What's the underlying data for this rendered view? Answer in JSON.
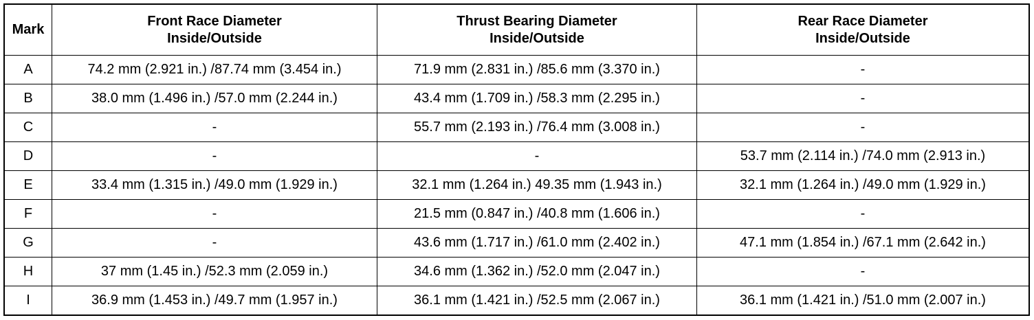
{
  "table": {
    "header": [
      [
        "Mark"
      ],
      [
        "Front Race Diameter",
        "Inside/Outside"
      ],
      [
        "Thrust Bearing Diameter",
        "Inside/Outside"
      ],
      [
        "Rear Race Diameter",
        "Inside/Outside"
      ]
    ],
    "rows": [
      [
        "A",
        "74.2 mm (2.921 in.) /87.74 mm (3.454 in.)",
        "71.9 mm (2.831 in.) /85.6 mm (3.370 in.)",
        "-"
      ],
      [
        "B",
        "38.0 mm (1.496 in.) /57.0 mm (2.244 in.)",
        "43.4 mm (1.709 in.) /58.3 mm (2.295 in.)",
        "-"
      ],
      [
        "C",
        "-",
        "55.7 mm (2.193 in.) /76.4 mm (3.008 in.)",
        "-"
      ],
      [
        "D",
        "-",
        "-",
        "53.7 mm (2.114 in.) /74.0 mm (2.913 in.)"
      ],
      [
        "E",
        "33.4 mm (1.315 in.) /49.0 mm (1.929 in.)",
        "32.1 mm (1.264 in.) 49.35 mm (1.943 in.)",
        "32.1 mm (1.264 in.) /49.0 mm (1.929 in.)"
      ],
      [
        "F",
        "-",
        "21.5 mm (0.847 in.) /40.8 mm (1.606 in.)",
        "-"
      ],
      [
        "G",
        "-",
        "43.6 mm (1.717 in.) /61.0 mm (2.402 in.)",
        "47.1 mm (1.854 in.) /67.1 mm (2.642 in.)"
      ],
      [
        "H",
        "37 mm (1.45 in.) /52.3 mm (2.059 in.)",
        "34.6 mm (1.362 in.) /52.0 mm (2.047 in.)",
        "-"
      ],
      [
        "I",
        "36.9 mm (1.453 in.) /49.7 mm (1.957 in.)",
        "36.1 mm (1.421 in.) /52.5 mm (2.067 in.)",
        "36.1 mm (1.421 in.) /51.0 mm (2.007 in.)"
      ]
    ]
  }
}
